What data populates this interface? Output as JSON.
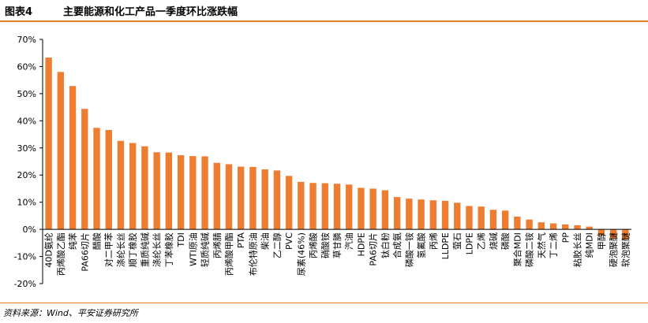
{
  "header": {
    "figure_label": "图表4",
    "title": "主要能源和化工产品一季度环比涨跌幅"
  },
  "footer": {
    "source": "资料来源：Wind、平安证券研究所"
  },
  "colors": {
    "bar": "#ED7D31",
    "accent": "#E08020"
  },
  "chart_data": {
    "type": "bar",
    "title": "主要能源和化工产品一季度环比涨跌幅",
    "xlabel": "",
    "ylabel": "",
    "ylim": [
      -20,
      70
    ],
    "yticks": [
      -20,
      -10,
      0,
      10,
      20,
      30,
      40,
      50,
      60,
      70
    ],
    "ytick_format": "percent",
    "grid": false,
    "legend": "none",
    "categories": [
      "40D氨纶",
      "丙烯酸乙酯",
      "纯苯",
      "PA66切片",
      "醋酸",
      "对二甲苯",
      "涤纶长丝",
      "顺丁橡胶",
      "重质纯碱",
      "涤纶长丝",
      "丁苯橡胶",
      "TDI",
      "WTI原油",
      "轻质纯碱",
      "丙烯腈",
      "丙烯酸甲酯",
      "PTA",
      "布伦特原油",
      "柴油",
      "乙二醇",
      "PVC",
      "尿素(46%)",
      "丙烯酸",
      "硝酸铵",
      "草甘膦",
      "汽油",
      "HDPE",
      "PA6切片",
      "钛白粉",
      "合成氨",
      "磷酸一铵",
      "氢氟酸",
      "丙烯",
      "LLDPE",
      "萤石",
      "LDPE",
      "乙烯",
      "烧碱",
      "磷酸",
      "聚合MDI",
      "磷酸二铵",
      "天然气",
      "丁二烯",
      "PP",
      "粘胶长丝",
      "纯MDI",
      "甲醇",
      "硬泡聚醚",
      "软泡聚醚"
    ],
    "values": [
      63.3,
      58.0,
      52.8,
      44.4,
      37.4,
      36.6,
      32.6,
      31.8,
      30.6,
      28.4,
      28.3,
      27.3,
      27.0,
      26.9,
      24.5,
      24.0,
      23.1,
      23.0,
      22.1,
      21.7,
      19.7,
      17.5,
      17.1,
      17.0,
      16.8,
      16.5,
      15.3,
      15.0,
      14.4,
      11.9,
      11.3,
      11.0,
      10.7,
      10.5,
      9.8,
      8.6,
      8.4,
      7.2,
      6.9,
      4.7,
      3.6,
      2.6,
      2.2,
      1.8,
      1.5,
      1.0,
      -2.3,
      -3.5,
      -3.7
    ]
  }
}
